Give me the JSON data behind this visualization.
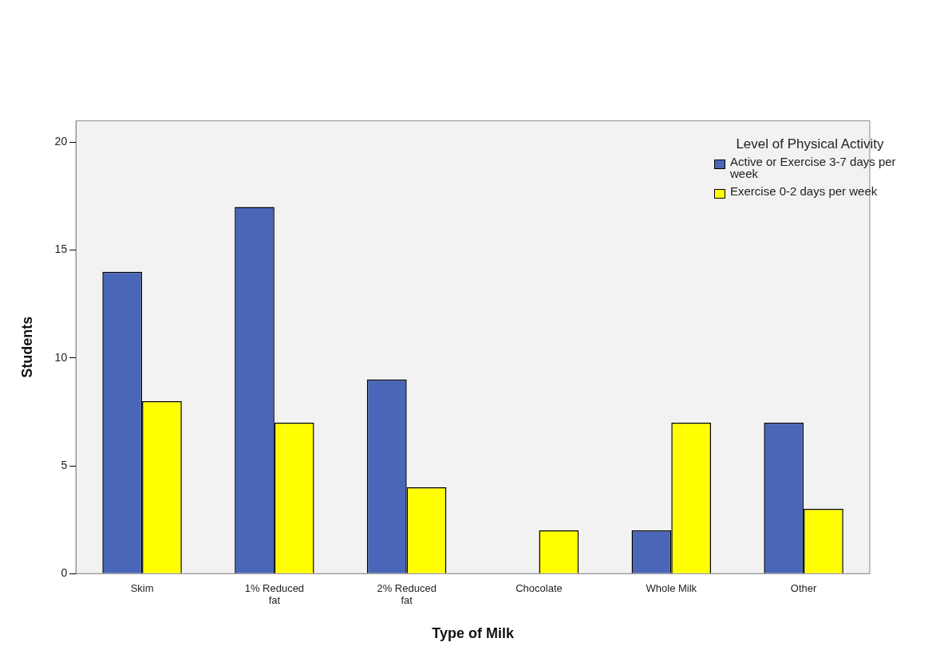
{
  "chart_data": {
    "type": "bar",
    "xlabel": "Type of Milk",
    "ylabel": "Students",
    "legend_title": "Level of Physical Activity",
    "legend": "right",
    "grid": false,
    "categories": [
      "Skim",
      "1% Reduced fat",
      "2% Reduced fat",
      "Chocolate",
      "Whole Milk",
      "Other"
    ],
    "series": [
      {
        "name": "Active or Exercise 3-7 days per week",
        "color": "#4a66b8",
        "values": [
          14,
          17,
          9,
          0,
          2,
          7
        ]
      },
      {
        "name": "Exercise 0-2 days per week",
        "color": "#ffff00",
        "values": [
          8,
          7,
          4,
          2,
          7,
          3
        ]
      }
    ],
    "ylim": [
      0,
      21
    ],
    "yticks": [
      0,
      5,
      10,
      15,
      20
    ]
  }
}
